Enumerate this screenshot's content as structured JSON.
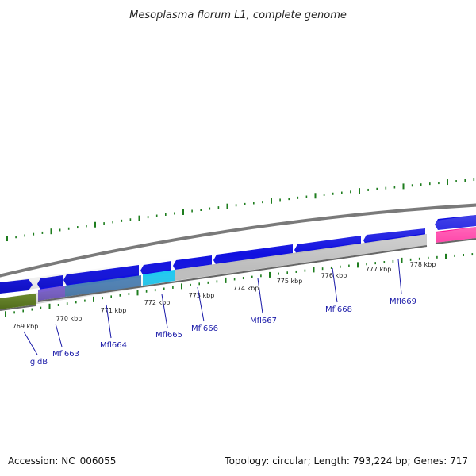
{
  "title": "Mesoplasma florum L1, complete genome",
  "footer": {
    "accession": "Accession: NC_006055",
    "summary": "Topology: circular; Length: 793,224 bp; Genes: 717"
  },
  "kbp_ticks": [
    "769 kbp",
    "770 kbp",
    "771 kbp",
    "772 kbp",
    "773 kbp",
    "774 kbp",
    "775 kbp",
    "776 kbp",
    "777 kbp",
    "778 kbp"
  ],
  "gene_labels": [
    "gidB",
    "Mfl663",
    "Mfl664",
    "Mfl665",
    "Mfl666",
    "Mfl667",
    "Mfl668",
    "Mfl669"
  ],
  "colors": {
    "forward_strand_genes": "#1010e0",
    "gidB_feature": "#6b8e23",
    "Mfl663_feature": "#7a5fd0",
    "Mfl664_feature": "#4a7fb5",
    "Mfl665_feature": "#1ec8f0",
    "grey_feature": "#bdbdbd",
    "magenta_feature": "#ff1493",
    "backbone": "#8a8a8a",
    "ticks": "#1e7d1e",
    "label": "#1a1aa8"
  }
}
